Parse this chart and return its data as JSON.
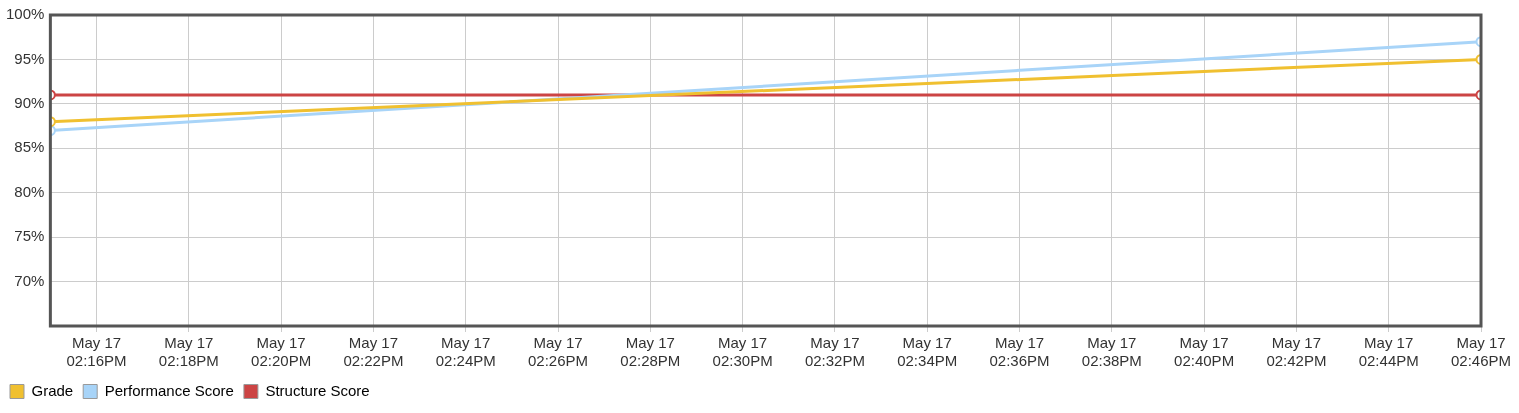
{
  "chart_data": {
    "type": "line",
    "x": [
      "--05-17T14:15",
      "--05-17T14:46"
    ],
    "xlim": [
      "--05-17T14:15",
      "--05-17T14:46"
    ],
    "xticks": [
      {
        "value": "--05-17T14:16",
        "label": "May 17\n02:16PM"
      },
      {
        "value": "--05-17T14:18",
        "label": "May 17\n02:18PM"
      },
      {
        "value": "--05-17T14:20",
        "label": "May 17\n02:20PM"
      },
      {
        "value": "--05-17T14:22",
        "label": "May 17\n02:22PM"
      },
      {
        "value": "--05-17T14:24",
        "label": "May 17\n02:24PM"
      },
      {
        "value": "--05-17T14:26",
        "label": "May 17\n02:26PM"
      },
      {
        "value": "--05-17T14:28",
        "label": "May 17\n02:28PM"
      },
      {
        "value": "--05-17T14:30",
        "label": "May 17\n02:30PM"
      },
      {
        "value": "--05-17T14:32",
        "label": "May 17\n02:32PM"
      },
      {
        "value": "--05-17T14:34",
        "label": "May 17\n02:34PM"
      },
      {
        "value": "--05-17T14:36",
        "label": "May 17\n02:36PM"
      },
      {
        "value": "--05-17T14:38",
        "label": "May 17\n02:38PM"
      },
      {
        "value": "--05-17T14:40",
        "label": "May 17\n02:40PM"
      },
      {
        "value": "--05-17T14:42",
        "label": "May 17\n02:42PM"
      },
      {
        "value": "--05-17T14:44",
        "label": "May 17\n02:44PM"
      },
      {
        "value": "--05-17T14:46",
        "label": "May 17\n02:46PM"
      }
    ],
    "ylim": [
      65,
      100
    ],
    "yticks": [
      {
        "value": 70,
        "label": "70%"
      },
      {
        "value": 75,
        "label": "75%"
      },
      {
        "value": 80,
        "label": "80%"
      },
      {
        "value": 85,
        "label": "85%"
      },
      {
        "value": 90,
        "label": "90%"
      },
      {
        "value": 95,
        "label": "95%"
      },
      {
        "value": 100,
        "label": "100%"
      }
    ],
    "series": [
      {
        "name": "Grade",
        "color": "#f0c030",
        "values": [
          88,
          95
        ]
      },
      {
        "name": "Performance Score",
        "color": "#a8d4f8",
        "values": [
          87,
          97
        ]
      },
      {
        "name": "Structure Score",
        "color": "#cc4444",
        "values": [
          91,
          91
        ]
      }
    ],
    "marker": "circle",
    "line_style": "solid",
    "grid": true,
    "legend": "bottom left"
  }
}
